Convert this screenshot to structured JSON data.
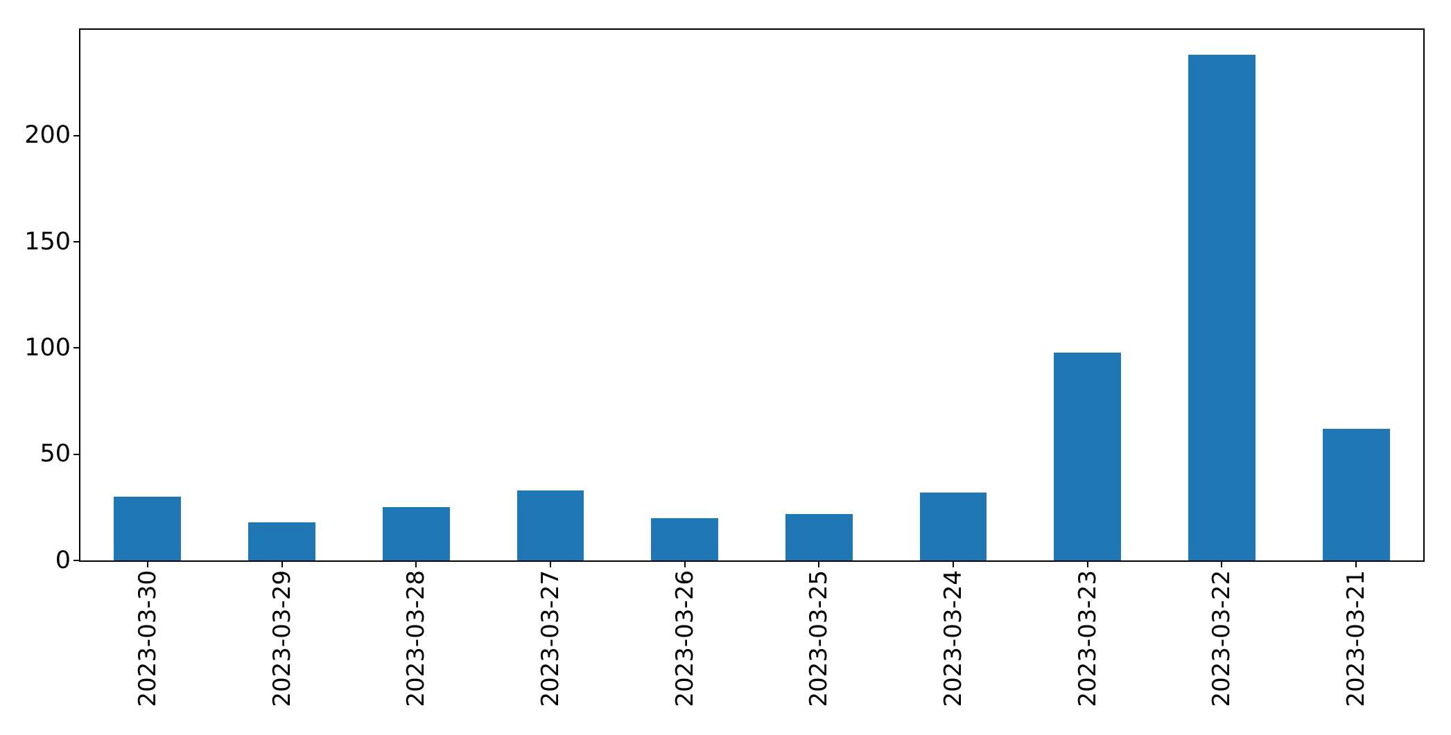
{
  "chart_data": {
    "type": "bar",
    "title": "",
    "xlabel": "",
    "ylabel": "",
    "categories": [
      "2023-03-30",
      "2023-03-29",
      "2023-03-28",
      "2023-03-27",
      "2023-03-26",
      "2023-03-25",
      "2023-03-24",
      "2023-03-23",
      "2023-03-22",
      "2023-03-21"
    ],
    "values": [
      30,
      18,
      25,
      33,
      20,
      22,
      32,
      98,
      238,
      62
    ],
    "yticks": [
      0,
      50,
      100,
      150,
      200
    ],
    "ylim": [
      0,
      249.9
    ],
    "x_tick_label_rotation_deg": 90,
    "grid": false,
    "legend": null,
    "bar_color": "#1f77b4",
    "axis_color": "#000000",
    "background_color": "#ffffff"
  }
}
